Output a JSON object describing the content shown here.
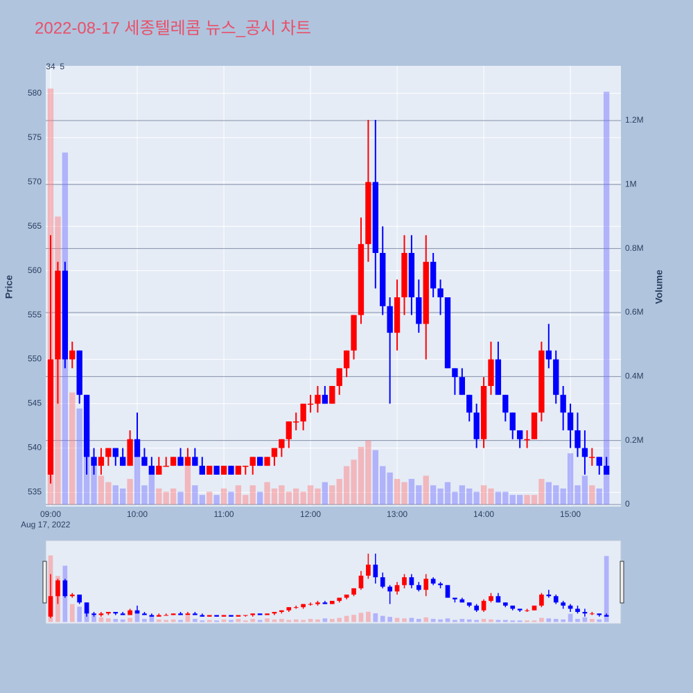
{
  "chart_data": {
    "type": "candlestick",
    "title": "2022-08-17 세종텔레콤 뉴스_공시 차트",
    "yaxis_title": "Price",
    "y2axis_title": "Volume",
    "x_date_label": "Aug 17, 2022",
    "up_color": "#ff0000",
    "down_color": "#0000ff",
    "volume_up_color": "rgba(255,120,120,0.45)",
    "volume_down_color": "rgba(110,110,255,0.45)",
    "grid": true,
    "rangeslider": true,
    "xlim": [
      "2022-08-17 08:56:38",
      "2022-08-17 15:35"
    ],
    "xticks": [
      {
        "value": "2022-08-17 09:00",
        "label": "09:00"
      },
      {
        "value": "2022-08-17 10:00",
        "label": "10:00"
      },
      {
        "value": "2022-08-17 11:00",
        "label": "11:00"
      },
      {
        "value": "2022-08-17 12:00",
        "label": "12:00"
      },
      {
        "value": "2022-08-17 13:00",
        "label": "13:00"
      },
      {
        "value": "2022-08-17 14:00",
        "label": "14:00"
      },
      {
        "value": "2022-08-17 15:00",
        "label": "15:00"
      }
    ],
    "ylim": [
      533.4,
      583.1
    ],
    "yticks": [
      535,
      540,
      545,
      550,
      555,
      560,
      565,
      570,
      575,
      580
    ],
    "y2lim": [
      -6500,
      1371000
    ],
    "y2ticks": [
      0,
      {
        "value": 200000,
        "label": "0.2M"
      },
      {
        "value": 400000,
        "label": "0.4M"
      },
      {
        "value": 600000,
        "label": "0.6M"
      },
      {
        "value": 800000,
        "label": "0.8M"
      },
      {
        "value": 1000000,
        "label": "1M"
      },
      {
        "value": 1200000,
        "label": "1.2M"
      }
    ],
    "annotations": [
      {
        "text": "34",
        "x": "2022-08-17 09:00"
      },
      {
        "text": "5",
        "x": "2022-08-17 09:08"
      }
    ],
    "x": [
      "2022-08-17 09:00",
      "2022-08-17 09:05",
      "2022-08-17 09:10",
      "2022-08-17 09:15",
      "2022-08-17 09:20",
      "2022-08-17 09:25",
      "2022-08-17 09:30",
      "2022-08-17 09:35",
      "2022-08-17 09:40",
      "2022-08-17 09:45",
      "2022-08-17 09:50",
      "2022-08-17 09:55",
      "2022-08-17 10:00",
      "2022-08-17 10:05",
      "2022-08-17 10:10",
      "2022-08-17 10:15",
      "2022-08-17 10:20",
      "2022-08-17 10:25",
      "2022-08-17 10:30",
      "2022-08-17 10:35",
      "2022-08-17 10:40",
      "2022-08-17 10:45",
      "2022-08-17 10:50",
      "2022-08-17 10:55",
      "2022-08-17 11:00",
      "2022-08-17 11:05",
      "2022-08-17 11:10",
      "2022-08-17 11:15",
      "2022-08-17 11:20",
      "2022-08-17 11:25",
      "2022-08-17 11:30",
      "2022-08-17 11:35",
      "2022-08-17 11:40",
      "2022-08-17 11:45",
      "2022-08-17 11:50",
      "2022-08-17 11:55",
      "2022-08-17 12:00",
      "2022-08-17 12:05",
      "2022-08-17 12:10",
      "2022-08-17 12:15",
      "2022-08-17 12:20",
      "2022-08-17 12:25",
      "2022-08-17 12:30",
      "2022-08-17 12:35",
      "2022-08-17 12:40",
      "2022-08-17 12:45",
      "2022-08-17 12:50",
      "2022-08-17 12:55",
      "2022-08-17 13:00",
      "2022-08-17 13:05",
      "2022-08-17 13:10",
      "2022-08-17 13:15",
      "2022-08-17 13:20",
      "2022-08-17 13:25",
      "2022-08-17 13:30",
      "2022-08-17 13:35",
      "2022-08-17 13:40",
      "2022-08-17 13:45",
      "2022-08-17 13:50",
      "2022-08-17 13:55",
      "2022-08-17 14:00",
      "2022-08-17 14:05",
      "2022-08-17 14:10",
      "2022-08-17 14:15",
      "2022-08-17 14:20",
      "2022-08-17 14:25",
      "2022-08-17 14:30",
      "2022-08-17 14:35",
      "2022-08-17 14:40",
      "2022-08-17 14:45",
      "2022-08-17 14:50",
      "2022-08-17 14:55",
      "2022-08-17 15:00",
      "2022-08-17 15:05",
      "2022-08-17 15:10",
      "2022-08-17 15:15",
      "2022-08-17 15:20",
      "2022-08-17 15:25"
    ],
    "open": [
      537,
      550,
      560,
      550,
      551,
      546,
      539,
      538,
      539,
      540,
      539,
      538,
      541,
      539,
      538,
      537,
      538,
      538,
      539,
      538,
      539,
      538,
      537,
      538,
      537,
      538,
      537,
      538,
      538,
      539,
      538,
      539,
      540,
      541,
      543,
      543,
      545,
      545,
      546,
      545,
      547,
      549,
      551,
      555,
      563,
      570,
      562,
      556,
      553,
      557,
      562,
      557,
      554,
      561,
      558,
      557,
      549,
      548,
      546,
      544,
      541,
      547,
      550,
      546,
      544,
      542,
      541,
      541,
      544,
      551,
      550,
      546,
      544,
      542,
      540,
      539,
      539,
      538
    ],
    "high": [
      564,
      561,
      561,
      552,
      551,
      546,
      540,
      540,
      540,
      540,
      540,
      542,
      544,
      540,
      539,
      539,
      539,
      539,
      540,
      540,
      540,
      539,
      538,
      538,
      538,
      538,
      538,
      538,
      539,
      539,
      539,
      540,
      541,
      543,
      544,
      545,
      546,
      547,
      547,
      547,
      549,
      551,
      555,
      566,
      577,
      577,
      565,
      557,
      559,
      564,
      564,
      559,
      564,
      562,
      559,
      557,
      549,
      549,
      546,
      545,
      548,
      552,
      552,
      546,
      544,
      542,
      542,
      544,
      552,
      554,
      551,
      547,
      545,
      544,
      542,
      540,
      539,
      539
    ],
    "low": [
      536,
      545,
      549,
      549,
      545,
      537,
      537,
      537,
      538,
      538,
      538,
      538,
      539,
      538,
      537,
      537,
      538,
      538,
      538,
      538,
      538,
      537,
      537,
      537,
      537,
      537,
      537,
      537,
      537,
      538,
      538,
      538,
      539,
      540,
      542,
      542,
      544,
      544,
      545,
      545,
      546,
      548,
      550,
      554,
      561,
      558,
      555,
      545,
      551,
      555,
      555,
      553,
      550,
      557,
      555,
      549,
      546,
      546,
      543,
      540,
      540,
      546,
      546,
      543,
      541,
      540,
      540,
      541,
      543,
      549,
      545,
      542,
      540,
      539,
      537,
      538,
      537,
      537
    ],
    "close": [
      550,
      560,
      550,
      551,
      546,
      539,
      538,
      539,
      540,
      539,
      538,
      541,
      539,
      538,
      537,
      538,
      538,
      539,
      538,
      539,
      538,
      537,
      538,
      537,
      538,
      537,
      538,
      538,
      539,
      538,
      539,
      540,
      541,
      543,
      543,
      545,
      545,
      546,
      545,
      547,
      549,
      551,
      555,
      563,
      570,
      562,
      556,
      553,
      557,
      562,
      557,
      554,
      561,
      558,
      557,
      549,
      548,
      546,
      544,
      541,
      547,
      550,
      546,
      544,
      542,
      541,
      541,
      544,
      551,
      550,
      546,
      544,
      542,
      540,
      539,
      539,
      538,
      537
    ],
    "volume": [
      1300000,
      900000,
      1100000,
      350000,
      300000,
      260000,
      120000,
      90000,
      70000,
      60000,
      50000,
      80000,
      200000,
      60000,
      120000,
      50000,
      40000,
      50000,
      40000,
      120000,
      60000,
      30000,
      40000,
      30000,
      50000,
      40000,
      60000,
      30000,
      60000,
      40000,
      70000,
      50000,
      60000,
      40000,
      50000,
      40000,
      60000,
      50000,
      70000,
      60000,
      80000,
      120000,
      140000,
      180000,
      200000,
      170000,
      120000,
      100000,
      80000,
      70000,
      80000,
      60000,
      90000,
      60000,
      50000,
      70000,
      40000,
      60000,
      50000,
      40000,
      60000,
      50000,
      40000,
      40000,
      30000,
      30000,
      30000,
      30000,
      80000,
      70000,
      60000,
      50000,
      160000,
      60000,
      90000,
      60000,
      50000,
      1290000
    ]
  }
}
